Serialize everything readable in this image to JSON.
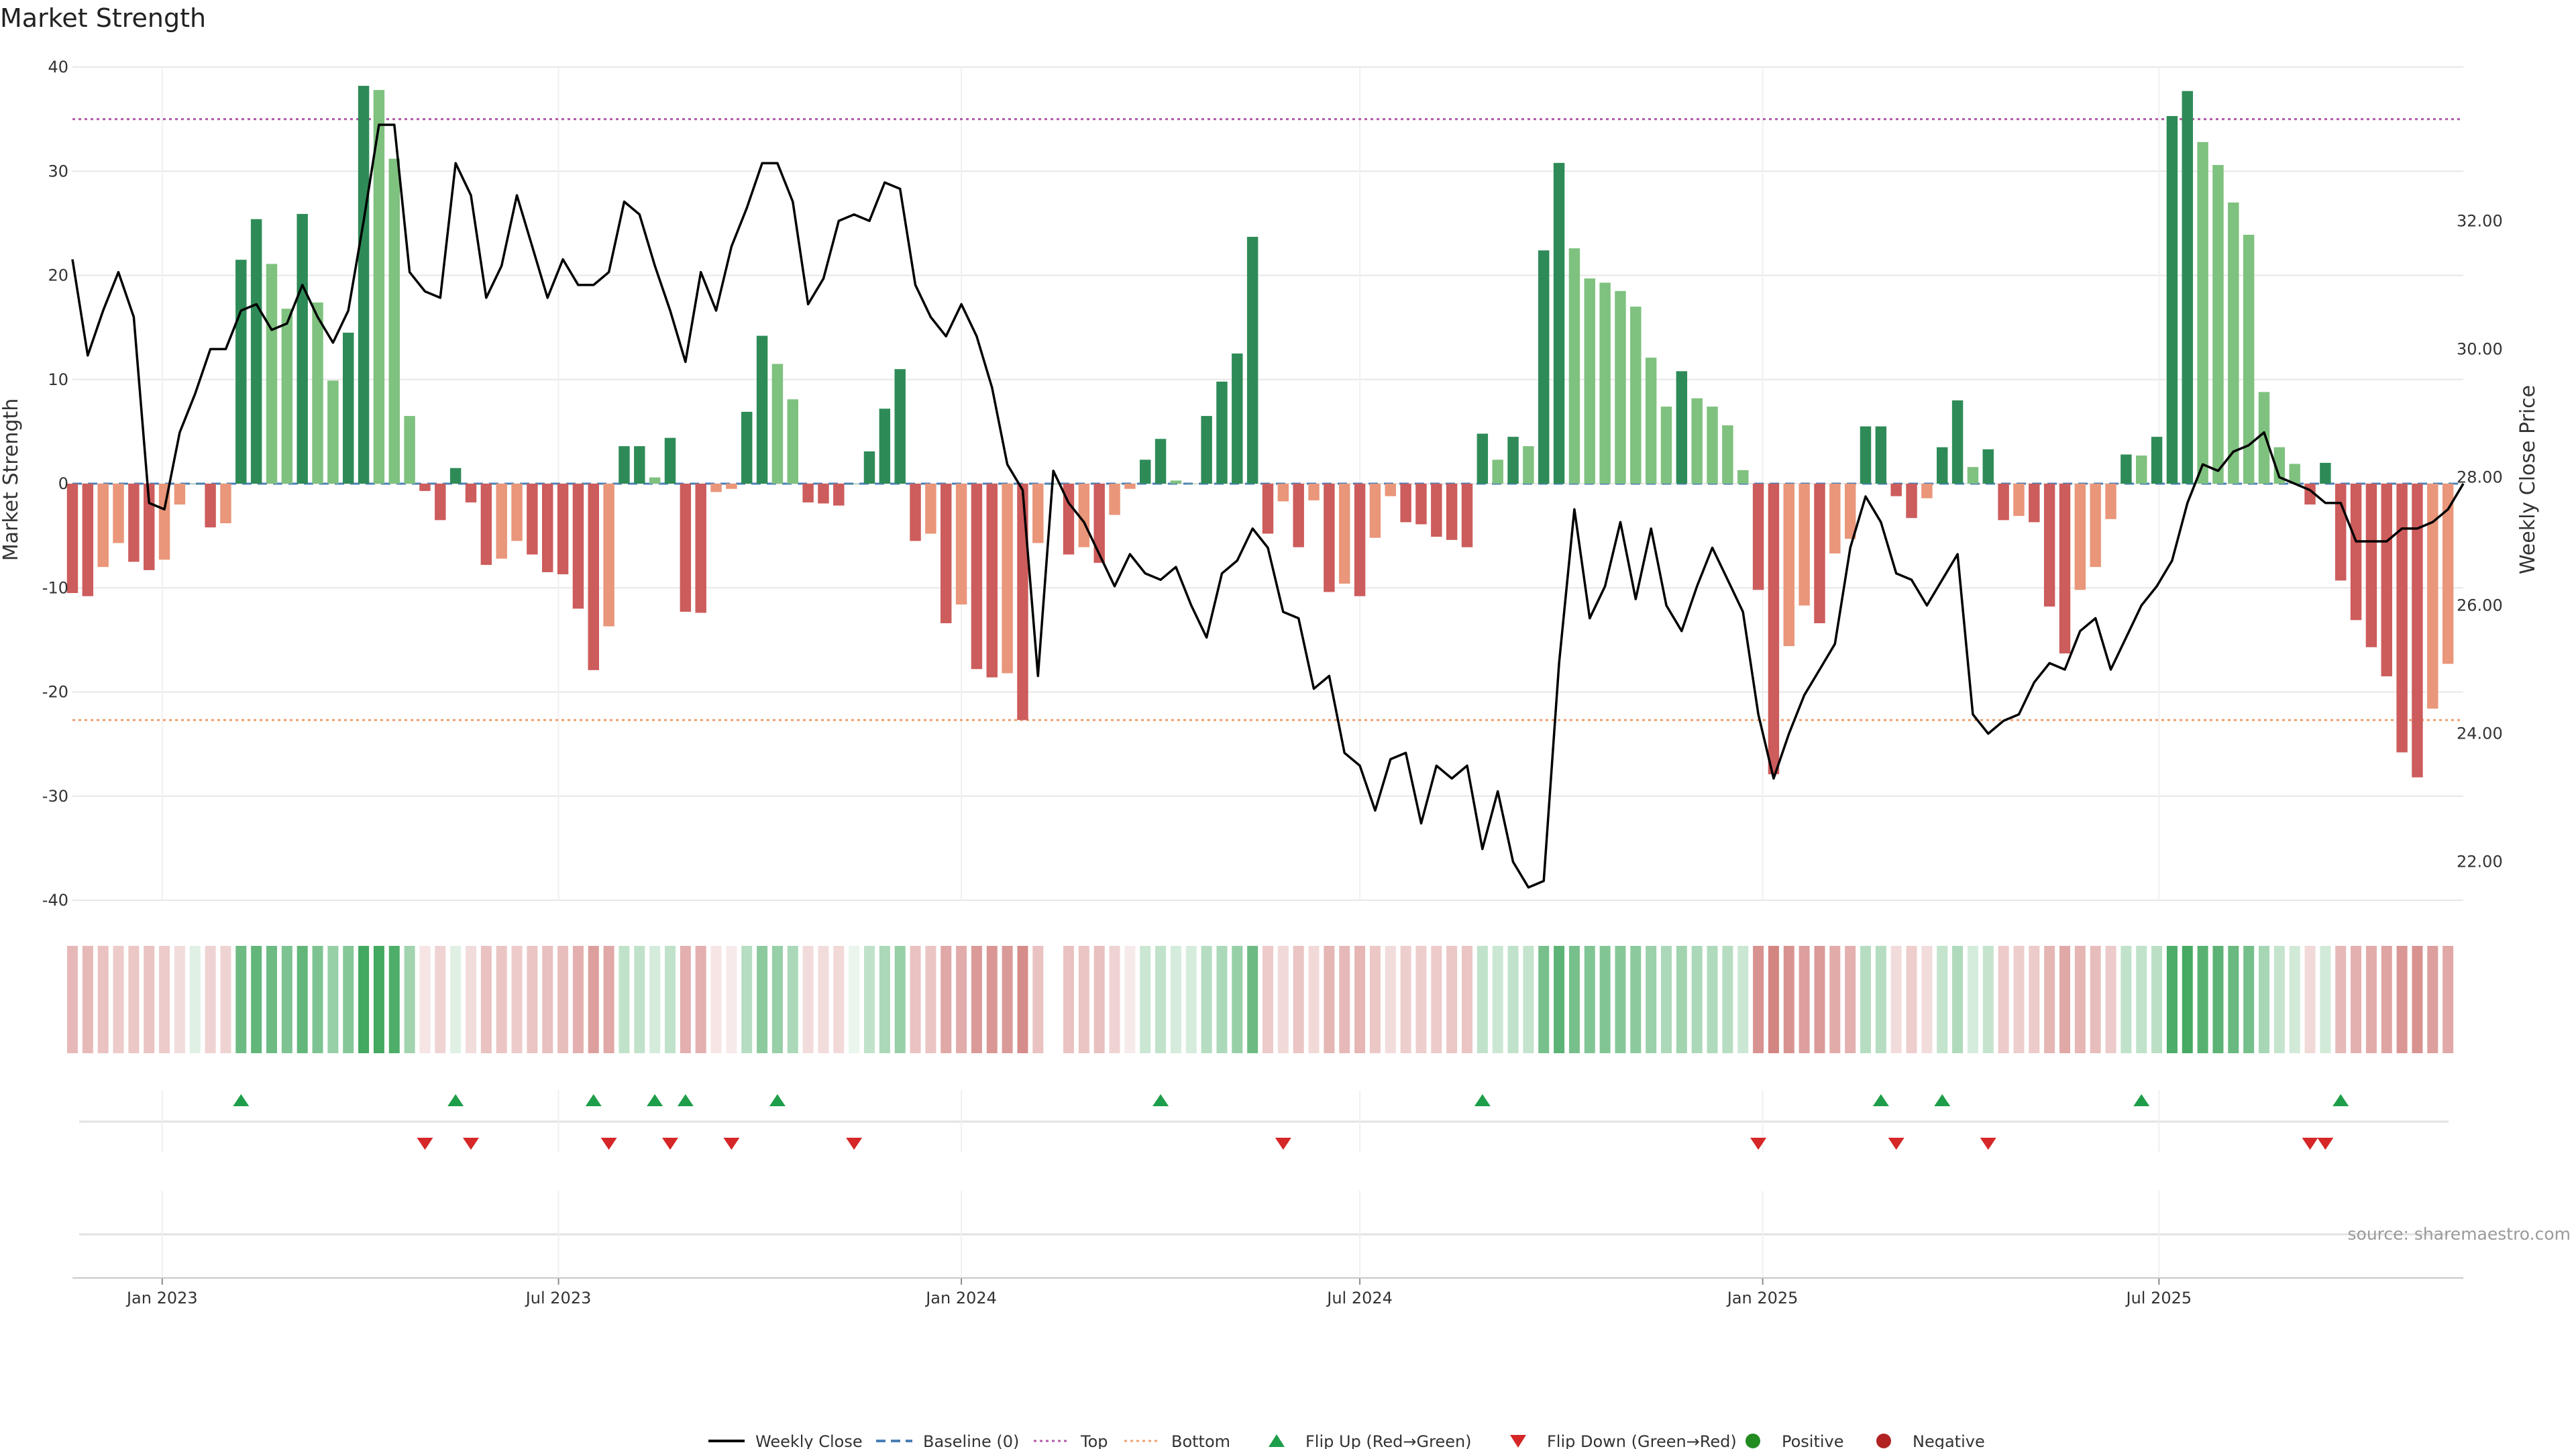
{
  "chart_data": {
    "type": "bar",
    "title": "Market Strength",
    "ylabel_left": "Market Strength",
    "ylabel_right": "Weekly Close Price",
    "source": "source: sharemaestro.com",
    "ylim_left": [
      -40,
      40
    ],
    "yticks_left": [
      -40,
      -30,
      -20,
      -10,
      0,
      10,
      20,
      30,
      40
    ],
    "ylim_right": [
      21.4,
      34.4
    ],
    "yticks_right": [
      "22.00",
      "24.00",
      "26.00",
      "28.00",
      "30.00",
      "32.00"
    ],
    "x_start": "2022-11-21",
    "x_end": "2025-11-17",
    "x_ticks": [
      {
        "date": "2023-01-01",
        "label": "Jan 2023"
      },
      {
        "date": "2023-07-01",
        "label": "Jul 2023"
      },
      {
        "date": "2024-01-01",
        "label": "Jan 2024"
      },
      {
        "date": "2024-07-01",
        "label": "Jul 2024"
      },
      {
        "date": "2025-01-01",
        "label": "Jan 2025"
      },
      {
        "date": "2025-07-01",
        "label": "Jul 2025"
      }
    ],
    "top_level": 35,
    "bottom_level": -22.7,
    "grid": true,
    "legend_position": "bottom",
    "colors": {
      "pos_strong": "#2e8b57",
      "pos_light": "#7fc17f",
      "neg_strong": "#cd5c5c",
      "neg_light": "#e9967a",
      "price": "#000000",
      "baseline": "#4a7fb5",
      "top": "#b05aa8",
      "bottom": "#f0a070",
      "flip_up": "#1e9e4a",
      "flip_down": "#d62728",
      "positive": "#228b22",
      "negative": "#b22222"
    },
    "bar_dates": [
      "2022-11-21",
      "2022-11-28",
      "2022-12-05",
      "2022-12-12",
      "2022-12-19",
      "2022-12-26",
      "2023-01-02",
      "2023-01-09",
      "2023-01-16",
      "2023-01-23",
      "2023-01-30",
      "2023-02-06",
      "2023-02-13",
      "2023-02-20",
      "2023-02-27",
      "2023-03-06",
      "2023-03-13",
      "2023-03-20",
      "2023-03-27",
      "2023-04-03",
      "2023-04-10",
      "2023-04-17",
      "2023-04-24",
      "2023-05-01",
      "2023-05-08",
      "2023-05-15",
      "2023-05-22",
      "2023-05-29",
      "2023-06-05",
      "2023-06-12",
      "2023-06-19",
      "2023-06-26",
      "2023-07-03",
      "2023-07-10",
      "2023-07-17",
      "2023-07-24",
      "2023-07-31",
      "2023-08-07",
      "2023-08-14",
      "2023-08-21",
      "2023-08-28",
      "2023-09-04",
      "2023-09-11",
      "2023-09-18",
      "2023-09-25",
      "2023-10-02",
      "2023-10-09",
      "2023-10-16",
      "2023-10-23",
      "2023-10-30",
      "2023-11-06",
      "2023-11-13",
      "2023-11-20",
      "2023-11-27",
      "2023-12-04",
      "2023-12-11",
      "2023-12-18",
      "2023-12-25",
      "2024-01-01",
      "2024-01-08",
      "2024-01-15",
      "2024-01-22",
      "2024-01-29",
      "2024-02-05",
      "2024-02-12",
      "2024-02-19",
      "2024-02-26",
      "2024-03-04",
      "2024-03-11",
      "2024-03-18",
      "2024-03-25",
      "2024-04-01",
      "2024-04-08",
      "2024-04-15",
      "2024-04-22",
      "2024-04-29",
      "2024-05-06",
      "2024-05-13",
      "2024-05-20",
      "2024-05-27",
      "2024-06-03",
      "2024-06-10",
      "2024-06-17",
      "2024-06-24",
      "2024-07-01",
      "2024-07-08",
      "2024-07-15",
      "2024-07-22",
      "2024-07-29",
      "2024-08-05",
      "2024-08-12",
      "2024-08-19",
      "2024-08-26",
      "2024-09-02",
      "2024-09-09",
      "2024-09-16",
      "2024-09-23",
      "2024-09-30",
      "2024-10-07",
      "2024-10-14",
      "2024-10-21",
      "2024-10-28",
      "2024-11-04",
      "2024-11-11",
      "2024-11-18",
      "2024-11-25",
      "2024-12-02",
      "2024-12-09",
      "2024-12-16",
      "2024-12-23",
      "2024-12-30",
      "2025-01-06",
      "2025-01-13",
      "2025-01-20",
      "2025-01-27",
      "2025-02-03",
      "2025-02-10",
      "2025-02-17",
      "2025-02-24",
      "2025-03-03",
      "2025-03-10",
      "2025-03-17",
      "2025-03-24",
      "2025-03-31",
      "2025-04-07",
      "2025-04-14",
      "2025-04-21",
      "2025-04-28",
      "2025-05-05",
      "2025-05-12",
      "2025-05-19",
      "2025-05-26",
      "2025-06-02",
      "2025-06-09",
      "2025-06-16",
      "2025-06-23",
      "2025-06-30",
      "2025-07-07",
      "2025-07-14",
      "2025-07-21",
      "2025-07-28",
      "2025-08-04",
      "2025-08-11",
      "2025-08-18",
      "2025-08-25",
      "2025-09-01",
      "2025-09-08",
      "2025-09-15",
      "2025-09-22",
      "2025-09-29",
      "2025-10-06",
      "2025-10-13",
      "2025-10-20",
      "2025-10-27",
      "2025-11-03",
      "2025-11-10",
      "2025-11-17"
    ],
    "strength": [
      -10.5,
      -10.8,
      -8,
      -5.7,
      -7.5,
      -8.3,
      -7.3,
      -2,
      0,
      -4.2,
      -3.8,
      21.5,
      25.4,
      21.1,
      16.8,
      25.9,
      17.4,
      9.9,
      14.5,
      38.2,
      37.8,
      31.2,
      6.5,
      -0.7,
      -3.5,
      1.5,
      -1.8,
      -7.8,
      -7.2,
      -5.5,
      -6.8,
      -8.5,
      -8.7,
      -12,
      -17.9,
      -13.7,
      3.6,
      3.6,
      0.6,
      4.4,
      -12.3,
      -12.4,
      -0.8,
      -0.5,
      6.9,
      14.2,
      11.5,
      8.1,
      -1.8,
      -1.9,
      -2.1,
      0,
      3.1,
      7.2,
      11,
      -5.5,
      -4.8,
      -13.4,
      -11.6,
      -17.8,
      -18.6,
      -18.2,
      -22.7,
      -5.7,
      0,
      -6.8,
      -6.1,
      -7.6,
      -3,
      -0.5,
      2.3,
      4.3,
      0.3,
      0,
      6.5,
      9.8,
      12.5,
      23.7,
      -4.8,
      -1.7,
      -6.1,
      -1.6,
      -10.4,
      -9.6,
      -10.8,
      -5.2,
      -1.2,
      -3.7,
      -3.9,
      -5.1,
      -5.4,
      -6.1,
      4.8,
      2.3,
      4.5,
      3.6,
      22.4,
      30.8,
      22.6,
      19.7,
      19.3,
      18.5,
      17,
      12.1,
      7.4,
      10.8,
      8.2,
      7.4,
      5.6,
      1.3,
      -10.2,
      -27.9,
      -15.6,
      -11.7,
      -13.4,
      -6.7,
      -5.3,
      5.5,
      5.5,
      -1.2,
      -3.3,
      -1.4,
      3.5,
      8,
      1.6,
      3.3,
      -3.5,
      -3.1,
      -3.7,
      -11.8,
      -16.3,
      -10.2,
      -8,
      -3.4,
      2.8,
      2.7,
      4.5,
      35.3,
      37.7,
      32.8,
      30.6,
      27,
      23.9,
      8.8,
      3.5,
      1.9,
      -2,
      2,
      -9.3,
      -13.1,
      -15.7,
      -18.5,
      -25.8,
      -28.2,
      -21.6,
      -17.3
    ],
    "weekly_close": [
      31.4,
      29.9,
      30.6,
      31.2,
      30.5,
      27.6,
      27.5,
      28.7,
      29.3,
      30.0,
      30.0,
      30.6,
      30.7,
      30.3,
      30.4,
      31.0,
      30.5,
      30.1,
      30.6,
      32.0,
      33.5,
      33.5,
      31.2,
      30.9,
      30.8,
      32.9,
      32.4,
      30.8,
      31.3,
      32.4,
      31.6,
      30.8,
      31.4,
      31.0,
      31.0,
      31.2,
      32.3,
      32.1,
      31.3,
      30.6,
      29.8,
      31.2,
      30.6,
      31.6,
      32.2,
      32.9,
      32.9,
      32.3,
      30.7,
      31.1,
      32.0,
      32.1,
      32.0,
      32.6,
      32.5,
      31.0,
      30.5,
      30.2,
      30.7,
      30.2,
      29.4,
      28.2,
      27.8,
      24.9,
      28.1,
      27.6,
      27.3,
      26.8,
      26.3,
      26.8,
      26.5,
      26.4,
      26.6,
      26.0,
      25.5,
      26.5,
      26.7,
      27.2,
      26.9,
      25.9,
      25.8,
      24.7,
      24.9,
      23.7,
      23.5,
      22.8,
      23.6,
      23.7,
      22.6,
      23.5,
      23.3,
      23.5,
      22.2,
      23.1,
      22.0,
      21.6,
      21.7,
      25.1,
      27.5,
      25.8,
      26.3,
      27.3,
      26.1,
      27.2,
      26.0,
      25.6,
      26.3,
      26.9,
      26.4,
      25.9,
      24.3,
      23.3,
      24.0,
      24.6,
      25.0,
      25.4,
      26.9,
      27.7,
      27.3,
      26.5,
      26.4,
      26.0,
      26.4,
      26.8,
      24.3,
      24.0,
      24.2,
      24.3,
      24.8,
      25.1,
      25.0,
      25.6,
      25.8,
      25.0,
      25.5,
      26.0,
      26.3,
      26.7,
      27.6,
      28.2,
      28.1,
      28.4,
      28.5,
      28.7,
      28.0,
      27.9,
      27.8,
      27.6,
      27.6,
      27.0,
      27.0,
      27.0,
      27.2,
      27.2,
      27.3,
      27.5,
      27.9
    ],
    "heat_intensity": [
      0.4,
      0.4,
      0.35,
      0.3,
      0.32,
      0.34,
      0.3,
      0.2,
      0.15,
      0.25,
      0.25,
      0.7,
      0.75,
      0.7,
      0.62,
      0.75,
      0.62,
      0.5,
      0.58,
      0.9,
      0.9,
      0.85,
      0.45,
      0.15,
      0.25,
      0.15,
      0.2,
      0.35,
      0.33,
      0.3,
      0.33,
      0.36,
      0.37,
      0.45,
      0.55,
      0.5,
      0.3,
      0.3,
      0.2,
      0.3,
      0.45,
      0.45,
      0.15,
      0.12,
      0.35,
      0.55,
      0.5,
      0.4,
      0.2,
      0.2,
      0.22,
      0.1,
      0.3,
      0.4,
      0.5,
      0.35,
      0.33,
      0.5,
      0.48,
      0.58,
      0.6,
      0.58,
      0.66,
      0.35,
      0.0,
      0.35,
      0.33,
      0.36,
      0.25,
      0.12,
      0.25,
      0.3,
      0.2,
      0.2,
      0.35,
      0.4,
      0.5,
      0.7,
      0.3,
      0.22,
      0.33,
      0.22,
      0.42,
      0.4,
      0.42,
      0.32,
      0.2,
      0.28,
      0.28,
      0.3,
      0.32,
      0.33,
      0.3,
      0.25,
      0.3,
      0.28,
      0.65,
      0.78,
      0.65,
      0.6,
      0.6,
      0.58,
      0.55,
      0.48,
      0.4,
      0.45,
      0.4,
      0.38,
      0.35,
      0.25,
      0.62,
      0.7,
      0.62,
      0.55,
      0.58,
      0.48,
      0.45,
      0.35,
      0.35,
      0.2,
      0.28,
      0.2,
      0.28,
      0.38,
      0.2,
      0.28,
      0.3,
      0.28,
      0.3,
      0.42,
      0.5,
      0.42,
      0.38,
      0.3,
      0.3,
      0.3,
      0.33,
      0.85,
      0.88,
      0.8,
      0.78,
      0.72,
      0.66,
      0.42,
      0.28,
      0.22,
      0.22,
      0.22,
      0.4,
      0.45,
      0.48,
      0.52,
      0.6,
      0.62,
      0.55,
      0.5
    ],
    "flip_up_dates": [
      "2023-02-06",
      "2023-05-15",
      "2023-07-17",
      "2023-08-14",
      "2023-08-28",
      "2023-10-09",
      "2024-04-01",
      "2024-08-26",
      "2025-02-24",
      "2025-03-24",
      "2025-06-23",
      "2025-09-22"
    ],
    "flip_down_dates": [
      "2023-05-01",
      "2023-05-22",
      "2023-07-24",
      "2023-08-21",
      "2023-09-18",
      "2023-11-13",
      "2024-05-27",
      "2024-12-30",
      "2025-03-03",
      "2025-04-14",
      "2025-09-08",
      "2025-09-15"
    ],
    "legend": [
      {
        "type": "line",
        "label": "Weekly Close"
      },
      {
        "type": "dashed",
        "label": "Baseline (0)"
      },
      {
        "type": "dotted-top",
        "label": "Top"
      },
      {
        "type": "dotted-bottom",
        "label": "Bottom"
      },
      {
        "type": "tri-up",
        "label": "Flip Up (Red→Green)"
      },
      {
        "type": "tri-down",
        "label": "Flip Down (Green→Red)"
      },
      {
        "type": "dot-pos",
        "label": "Positive"
      },
      {
        "type": "dot-neg",
        "label": "Negative"
      }
    ]
  }
}
